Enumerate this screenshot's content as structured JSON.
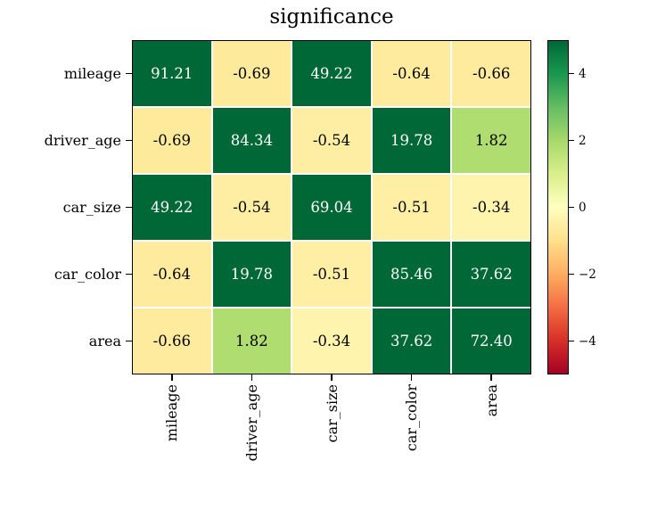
{
  "chart_data": {
    "type": "heatmap",
    "title": "significance",
    "x_categories": [
      "mileage",
      "driver_age",
      "car_size",
      "car_color",
      "area"
    ],
    "y_categories": [
      "mileage",
      "driver_age",
      "car_size",
      "car_color",
      "area"
    ],
    "values": [
      [
        91.21,
        -0.69,
        49.22,
        -0.64,
        -0.66
      ],
      [
        -0.69,
        84.34,
        -0.54,
        19.78,
        1.82
      ],
      [
        49.22,
        -0.54,
        69.04,
        -0.51,
        -0.34
      ],
      [
        -0.64,
        19.78,
        -0.51,
        85.46,
        37.62
      ],
      [
        -0.66,
        1.82,
        -0.34,
        37.62,
        72.4
      ]
    ],
    "value_decimals": 2,
    "colormap": "RdYlGn",
    "vmin": -5,
    "vmax": 5,
    "colormap_stops": [
      "#a50026",
      "#d73027",
      "#f46d43",
      "#fdae61",
      "#fee08b",
      "#ffffbf",
      "#d9ef8b",
      "#a6d96a",
      "#66bd63",
      "#1a9850",
      "#006837"
    ],
    "colorbar_ticks": [
      4,
      2,
      0,
      -2,
      -4
    ],
    "cell_text_colors": {
      "dark_bg": "#ffffff",
      "light_bg": "#000000"
    },
    "grid_line_color": "#ffffff",
    "frame_color": "#000000",
    "legend_position": "right"
  }
}
